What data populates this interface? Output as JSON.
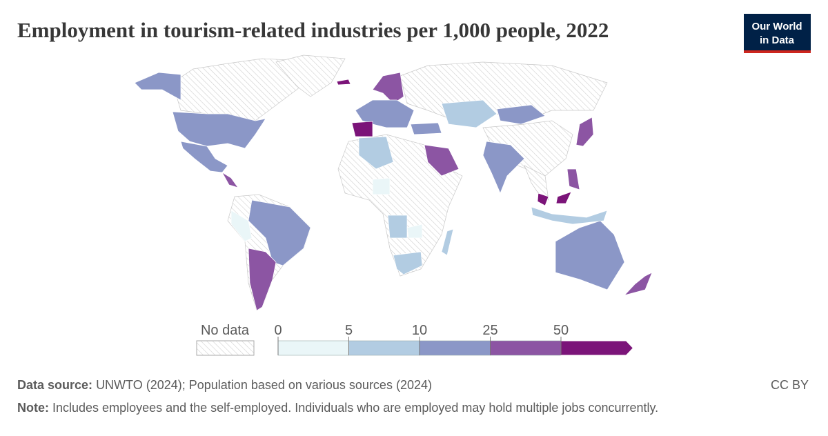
{
  "header": {
    "title": "Employment in tourism-related industries per 1,000 people, 2022",
    "logo": [
      "Our World",
      "in Data"
    ]
  },
  "chart_data": {
    "type": "map",
    "legend": {
      "no_data_label": "No data",
      "ticks": [
        0,
        5,
        10,
        25,
        50
      ],
      "colors": [
        "#eaf6f8",
        "#b2cce2",
        "#8b97c7",
        "#8c55a3",
        "#7b1479"
      ]
    }
  },
  "footer": {
    "source_label": "Data source:",
    "source": "UNWTO (2024); Population based on various sources (2024)",
    "license": "CC BY",
    "note_label": "Note:",
    "note": "Includes employees and the self-employed. Individuals who are employed may hold multiple jobs concurrently."
  }
}
